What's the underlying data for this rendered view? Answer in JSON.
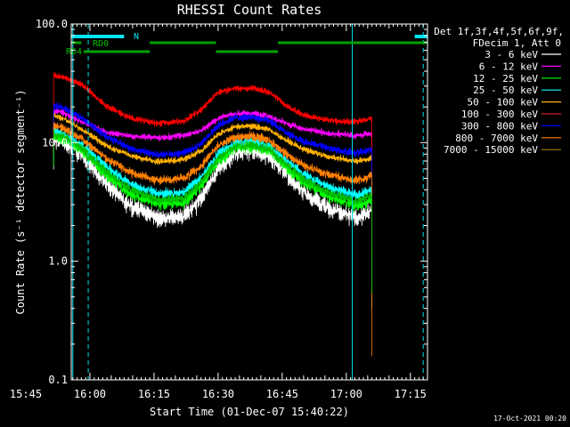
{
  "chart_data": {
    "type": "line",
    "title": "RHESSI Count Rates",
    "xlabel": "Start Time (01-Dec-07 15:40:22)",
    "ylabel": "Count Rate (s⁻¹ detector segment⁻¹)",
    "yscale": "log",
    "ylim": [
      0.1,
      100
    ],
    "xlim_minutes": [
      15.63,
      99.0
    ],
    "x_ticks": [
      {
        "label": "15:45",
        "t": 5
      },
      {
        "label": "16:00",
        "t": 20
      },
      {
        "label": "16:15",
        "t": 35
      },
      {
        "label": "16:30",
        "t": 50
      },
      {
        "label": "16:45",
        "t": 65
      },
      {
        "label": "17:00",
        "t": 80
      },
      {
        "label": "17:15",
        "t": 95
      }
    ],
    "y_ticks": [
      {
        "label": "0.1",
        "v": 0.1
      },
      {
        "label": "1.0",
        "v": 1
      },
      {
        "label": "10.0",
        "v": 10
      },
      {
        "label": "100.0",
        "v": 100
      }
    ],
    "legend_header": [
      "Det 1f,3f,4f,5f,6f,9f,",
      "FDecim 1, Att 0"
    ],
    "legend_placement": "right",
    "x_units": "minutes after 15:40",
    "series": [
      {
        "name": "3 - 6 keV",
        "color": "#ffffff",
        "legend_color": "#ffffff",
        "noise": 0.14,
        "x": [
          11.5,
          13.5,
          18,
          24,
          30,
          36,
          42,
          46,
          50,
          54,
          58,
          62,
          66,
          70,
          76,
          80,
          82.4,
          84.6,
          86.0
        ],
        "y": [
          10.8,
          10.5,
          8.0,
          4.4,
          2.9,
          2.3,
          2.4,
          3.4,
          6.0,
          8.2,
          8.6,
          7.6,
          5.4,
          3.8,
          2.8,
          2.5,
          2.3,
          2.5,
          2.7
        ]
      },
      {
        "name": "6 - 12 keV",
        "color": "#ff00ff",
        "legend_color": "#ff00ff",
        "noise": 0.05,
        "x": [
          11.5,
          13.5,
          18,
          24,
          30,
          36,
          42,
          46,
          50,
          54,
          58,
          62,
          66,
          70,
          76,
          80,
          82.4,
          84.6,
          86.0
        ],
        "y": [
          18.5,
          18.0,
          15.0,
          12.2,
          11.3,
          11.0,
          11.5,
          12.6,
          16.0,
          17.6,
          17.6,
          16.6,
          14.5,
          13.0,
          12.0,
          11.7,
          11.5,
          11.7,
          12.0
        ]
      },
      {
        "name": "12 - 25 keV",
        "color": "#00ff00",
        "legend_color": "#00ff00",
        "noise": 0.09,
        "x": [
          11.5,
          13.5,
          18,
          24,
          30,
          36,
          42,
          46,
          50,
          54,
          58,
          62,
          66,
          70,
          76,
          80,
          82.4,
          84.6,
          86.0
        ],
        "y": [
          11.5,
          11.0,
          8.6,
          5.2,
          3.6,
          3.0,
          3.1,
          4.3,
          7.0,
          9.0,
          9.3,
          8.4,
          6.2,
          4.6,
          3.5,
          3.1,
          2.9,
          3.1,
          3.3
        ]
      },
      {
        "name": "25 - 50 keV",
        "color": "#00ffff",
        "legend_color": "#00ffff",
        "noise": 0.08,
        "x": [
          11.5,
          13.5,
          18,
          24,
          30,
          36,
          42,
          46,
          50,
          54,
          58,
          62,
          66,
          70,
          76,
          80,
          82.4,
          84.6,
          86.0
        ],
        "y": [
          12.6,
          12.0,
          9.6,
          6.2,
          4.4,
          3.7,
          3.8,
          5.1,
          8.0,
          10.0,
          10.2,
          9.3,
          7.0,
          5.4,
          4.2,
          3.8,
          3.6,
          3.8,
          4.0
        ]
      },
      {
        "name": "50 - 100 keV",
        "color": "#ffb000",
        "legend_color": "#ffb000",
        "noise": 0.05,
        "x": [
          11.5,
          13.5,
          18,
          24,
          30,
          36,
          42,
          46,
          50,
          54,
          58,
          62,
          66,
          70,
          76,
          80,
          82.4,
          84.6,
          86.0
        ],
        "y": [
          16.8,
          16.2,
          13.0,
          9.4,
          7.6,
          6.9,
          7.2,
          8.5,
          11.8,
          13.6,
          13.8,
          12.8,
          10.4,
          8.8,
          7.6,
          7.2,
          7.0,
          7.2,
          7.5
        ]
      },
      {
        "name": "100 - 300 keV",
        "color": "#ff0000",
        "legend_color": "#cc2222",
        "noise": 0.05,
        "x": [
          11.5,
          13.5,
          18,
          24,
          30,
          36,
          42,
          46,
          50,
          54,
          58,
          62,
          66,
          70,
          76,
          80,
          82.4,
          84.6,
          86.0
        ],
        "y": [
          37.0,
          36.0,
          31.0,
          20.0,
          16.0,
          14.5,
          15.2,
          19.0,
          26.5,
          28.5,
          28.8,
          26.5,
          20.5,
          17.0,
          15.5,
          15.0,
          15.2,
          15.5,
          16.0
        ]
      },
      {
        "name": "300 - 800 keV",
        "color": "#0000ff",
        "legend_color": "#0000ff",
        "noise": 0.06,
        "x": [
          11.5,
          13.5,
          18,
          24,
          30,
          36,
          42,
          46,
          50,
          54,
          58,
          62,
          66,
          70,
          76,
          80,
          82.4,
          84.6,
          86.0
        ],
        "y": [
          20.5,
          20.0,
          16.2,
          11.2,
          8.8,
          7.9,
          8.2,
          9.8,
          14.0,
          16.2,
          16.4,
          15.2,
          12.2,
          10.2,
          8.9,
          8.4,
          8.2,
          8.4,
          8.7
        ]
      },
      {
        "name": "800 - 7000 keV",
        "color": "#ff8000",
        "legend_color": "#ff8000",
        "noise": 0.07,
        "x": [
          11.5,
          13.5,
          18,
          24,
          30,
          36,
          42,
          46,
          50,
          54,
          58,
          62,
          66,
          70,
          76,
          80,
          82.4,
          84.6,
          86.0
        ],
        "y": [
          14.0,
          13.5,
          10.8,
          7.3,
          5.5,
          4.8,
          5.0,
          6.3,
          9.5,
          11.2,
          11.4,
          10.4,
          8.0,
          6.4,
          5.4,
          5.0,
          4.8,
          5.0,
          5.3
        ]
      },
      {
        "name": "7000 - 15000 keV",
        "color": "#00c000",
        "legend_color": "#a08000",
        "noise": 0.07,
        "x": [
          11.5,
          13.5,
          18,
          24,
          30,
          36,
          42,
          46,
          50,
          54,
          58,
          62,
          66,
          70,
          76,
          80,
          82.4,
          84.6,
          86.0
        ],
        "y": [
          11.8,
          11.4,
          9.0,
          5.6,
          3.9,
          3.3,
          3.4,
          4.6,
          7.4,
          9.3,
          9.6,
          8.7,
          6.5,
          4.9,
          3.8,
          3.4,
          3.2,
          3.4,
          3.6
        ]
      }
    ],
    "annotations": {
      "night_label": "N",
      "night_bars": [
        [
          15.63,
          28.0
        ],
        [
          96.0,
          98.9
        ]
      ],
      "rd0_label": "RD0",
      "rd4_label": "RD4",
      "rd_bars": [
        {
          "t0": 15.63,
          "t1": 18.0,
          "level": "high"
        },
        {
          "t0": 18.5,
          "t1": 34.0,
          "level": "low"
        },
        {
          "t0": 34.0,
          "t1": 49.5,
          "level": "high"
        },
        {
          "t0": 49.5,
          "t1": 64.0,
          "level": "low"
        },
        {
          "t0": 64.0,
          "t1": 98.9,
          "level": "high"
        }
      ],
      "solid_vlines": [
        16.0,
        81.4
      ],
      "dashed_vlines": [
        19.6,
        98.0
      ]
    }
  },
  "footer": {
    "timestamp": "17-Oct-2021 00:20"
  }
}
